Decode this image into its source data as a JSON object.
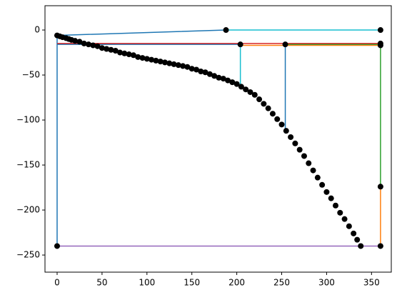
{
  "chart_data": {
    "type": "line",
    "xlim": [
      -13.5,
      372
    ],
    "ylim": [
      -269,
      27
    ],
    "xticks": [
      0,
      50,
      100,
      150,
      200,
      250,
      300,
      350
    ],
    "yticks": [
      {
        "value": -250,
        "label": "−250"
      },
      {
        "value": -200,
        "label": "−200"
      },
      {
        "value": -150,
        "label": "−150"
      },
      {
        "value": -100,
        "label": "−100"
      },
      {
        "value": -50,
        "label": "−50"
      },
      0
    ],
    "grid": false,
    "series": [
      {
        "color": "#1f77b4",
        "x": [
          188,
          0,
          0
        ],
        "values": [
          0,
          -6,
          -240
        ]
      },
      {
        "color": "#1f77b4",
        "x": [
          0,
          204
        ],
        "values": [
          -16,
          -16
        ]
      },
      {
        "color": "#1f77b4",
        "x": [
          254,
          254
        ],
        "values": [
          -16,
          -115
        ]
      },
      {
        "color": "#17becf",
        "x": [
          188,
          360
        ],
        "values": [
          0,
          0
        ]
      },
      {
        "color": "#17becf",
        "x": [
          204,
          204
        ],
        "values": [
          -16,
          -65
        ]
      },
      {
        "color": "#ff7f0e",
        "x": [
          204,
          360
        ],
        "values": [
          -17,
          -17
        ]
      },
      {
        "color": "#ff7f0e",
        "x": [
          360,
          360
        ],
        "values": [
          -174,
          -240
        ]
      },
      {
        "color": "#2ca02c",
        "x": [
          254,
          360
        ],
        "values": [
          -16,
          -16
        ]
      },
      {
        "color": "#2ca02c",
        "x": [
          360,
          360
        ],
        "values": [
          -16,
          -174
        ]
      },
      {
        "color": "#d62728",
        "x": [
          0,
          360
        ],
        "values": [
          -15,
          -15
        ]
      },
      {
        "color": "#9467bd",
        "x": [
          0,
          360
        ],
        "values": [
          -240,
          -240
        ]
      },
      {
        "color": "#000000",
        "marker": true,
        "x": [
          0,
          3,
          6,
          10,
          13,
          16,
          20,
          25,
          30,
          35,
          40,
          45,
          50,
          55,
          60,
          65,
          70,
          75,
          80,
          85,
          90,
          95,
          100,
          105,
          110,
          115,
          120,
          125,
          130,
          135,
          140,
          145,
          150,
          155,
          160,
          165,
          170,
          175,
          180,
          185,
          190,
          195,
          200,
          205,
          210,
          215,
          220,
          225,
          230,
          235,
          240,
          245,
          250,
          255,
          260,
          265,
          270,
          275,
          280,
          285,
          290,
          295,
          300,
          305,
          310,
          315,
          320,
          325,
          330,
          334,
          338,
          188,
          360,
          204,
          254,
          360,
          360,
          360,
          0,
          360
        ],
        "values": [
          -6,
          -7,
          -8,
          -9,
          -10,
          -11,
          -12,
          -13,
          -15,
          -16,
          -17,
          -18,
          -20,
          -21,
          -22,
          -23,
          -25,
          -26,
          -27,
          -28,
          -30,
          -31,
          -32,
          -33,
          -34,
          -35,
          -36,
          -37,
          -38,
          -39,
          -40,
          -41,
          -43,
          -44,
          -46,
          -47,
          -49,
          -51,
          -53,
          -54,
          -56,
          -58,
          -60,
          -63,
          -66,
          -69,
          -72,
          -77,
          -82,
          -87,
          -93,
          -99,
          -105,
          -112,
          -119,
          -126,
          -133,
          -140,
          -148,
          -156,
          -164,
          -172,
          -180,
          -187,
          -195,
          -203,
          -210,
          -218,
          -226,
          -233,
          -240,
          0,
          0,
          -16,
          -16,
          -15,
          -17,
          -174,
          -240,
          -240
        ]
      }
    ]
  }
}
